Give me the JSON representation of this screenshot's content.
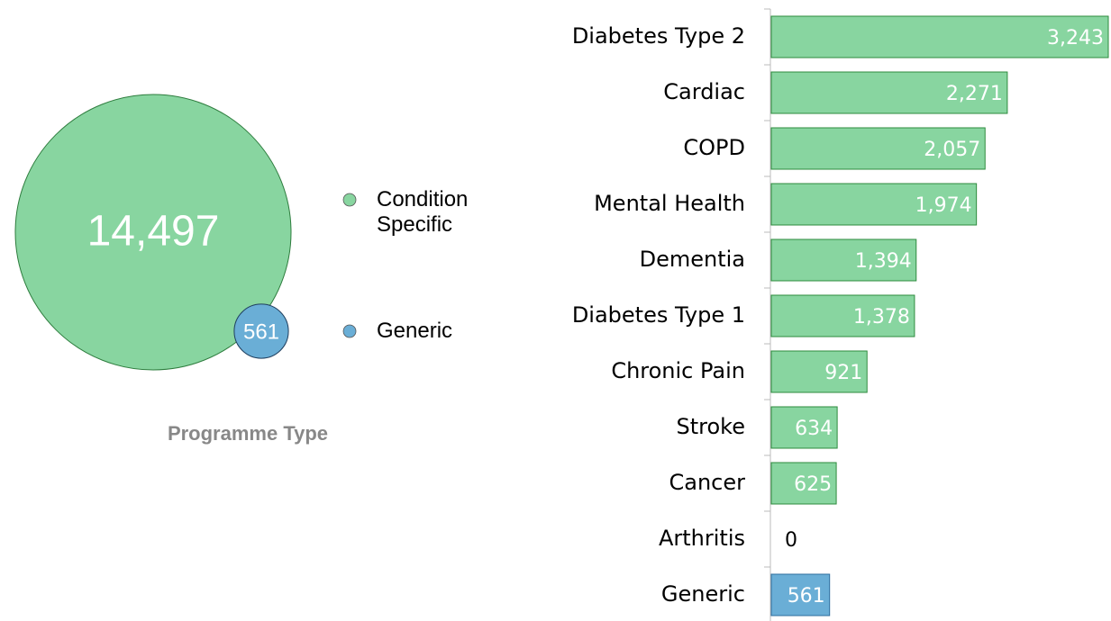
{
  "chart_data": [
    {
      "type": "bubble",
      "title": "Programme Type",
      "categories": [
        "Condition Specific",
        "Generic"
      ],
      "values": [
        14497,
        561
      ],
      "value_labels": [
        "14,497",
        "561"
      ],
      "colors": [
        "#88d5a0",
        "#6aaed6"
      ]
    },
    {
      "type": "bar",
      "orientation": "horizontal",
      "categories": [
        "Diabetes Type 2",
        "Cardiac",
        "COPD",
        "Mental Health",
        "Dementia",
        "Diabetes Type 1",
        "Chronic Pain",
        "Stroke",
        "Cancer",
        "Arthritis",
        "Generic"
      ],
      "values": [
        3243,
        2271,
        2057,
        1974,
        1394,
        1378,
        921,
        634,
        625,
        0,
        561
      ],
      "value_labels": [
        "3,243",
        "2,271",
        "2,057",
        "1,974",
        "1,394",
        "1,378",
        "921",
        "634",
        "625",
        "0",
        "561"
      ],
      "colors": [
        "#88d5a0",
        "#88d5a0",
        "#88d5a0",
        "#88d5a0",
        "#88d5a0",
        "#88d5a0",
        "#88d5a0",
        "#88d5a0",
        "#88d5a0",
        "#88d5a0",
        "#6aaed6"
      ]
    }
  ]
}
